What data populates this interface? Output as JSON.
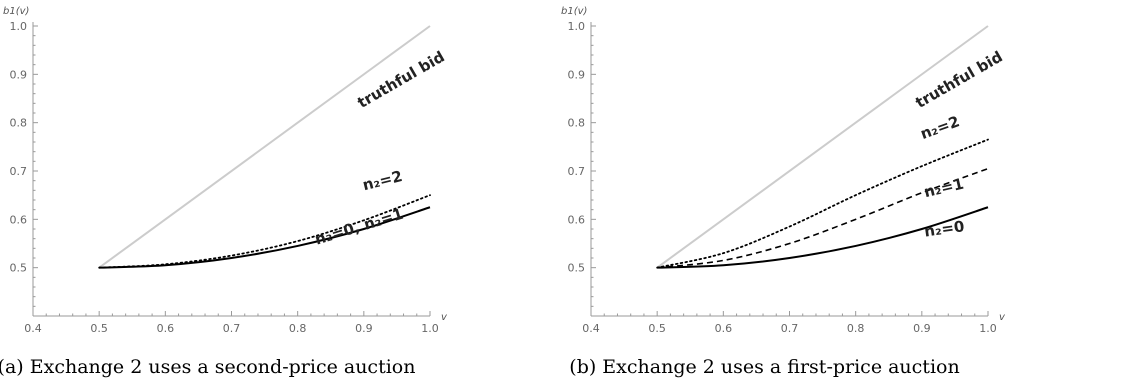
{
  "chart_data": [
    {
      "type": "line",
      "caption": "(a) Exchange 2 uses a second-price auction",
      "xlabel": "v",
      "ylabel": "b1(v)",
      "xlim": [
        0.4,
        1.0
      ],
      "ylim": [
        0.4,
        1.0
      ],
      "xticks": [
        "0.4",
        "0.5",
        "0.6",
        "0.7",
        "0.8",
        "0.9",
        "1.0"
      ],
      "yticks": [
        "0.5",
        "0.6",
        "0.7",
        "0.8",
        "0.9",
        "1.0"
      ],
      "series": [
        {
          "name": "truthful bid",
          "style": "solid",
          "color": "#cccccc",
          "x": [
            0.5,
            1.0
          ],
          "y": [
            0.5,
            1.0
          ]
        },
        {
          "name": "n2=0, n2=1",
          "style": "solid",
          "color": "#000000",
          "x": [
            0.5,
            0.6,
            0.7,
            0.8,
            0.9,
            1.0
          ],
          "y": [
            0.5,
            0.505,
            0.52,
            0.545,
            0.58,
            0.625
          ]
        },
        {
          "name": "n2=2",
          "style": "dotted",
          "color": "#000000",
          "x": [
            0.5,
            0.6,
            0.7,
            0.8,
            0.9,
            1.0
          ],
          "y": [
            0.5,
            0.507,
            0.525,
            0.555,
            0.598,
            0.65
          ]
        }
      ],
      "labels": [
        {
          "text": "truthful bid",
          "x": 0.96,
          "y": 0.88,
          "angle": -30
        },
        {
          "text": "n₂=2",
          "x": 0.93,
          "y": 0.67,
          "angle": -14
        },
        {
          "text": "n₂=0, n₂=1",
          "x": 0.895,
          "y": 0.575,
          "angle": -17
        }
      ]
    },
    {
      "type": "line",
      "caption": "(b) Exchange 2 uses a first-price auction",
      "xlabel": "v",
      "ylabel": "b1(v)",
      "xlim": [
        0.4,
        1.0
      ],
      "ylim": [
        0.4,
        1.0
      ],
      "xticks": [
        "0.4",
        "0.5",
        "0.6",
        "0.7",
        "0.8",
        "0.9",
        "1.0"
      ],
      "yticks": [
        "0.5",
        "0.6",
        "0.7",
        "0.8",
        "0.9",
        "1.0"
      ],
      "series": [
        {
          "name": "truthful bid",
          "style": "solid",
          "color": "#cccccc",
          "x": [
            0.5,
            1.0
          ],
          "y": [
            0.5,
            1.0
          ]
        },
        {
          "name": "n2=0",
          "style": "solid",
          "color": "#000000",
          "x": [
            0.5,
            0.6,
            0.7,
            0.8,
            0.9,
            1.0
          ],
          "y": [
            0.5,
            0.505,
            0.52,
            0.545,
            0.58,
            0.625
          ]
        },
        {
          "name": "n2=1",
          "style": "dashed",
          "color": "#000000",
          "x": [
            0.5,
            0.6,
            0.7,
            0.8,
            0.9,
            1.0
          ],
          "y": [
            0.5,
            0.515,
            0.55,
            0.6,
            0.655,
            0.705
          ]
        },
        {
          "name": "n2=2",
          "style": "dotted",
          "color": "#000000",
          "x": [
            0.5,
            0.6,
            0.7,
            0.8,
            0.9,
            1.0
          ],
          "y": [
            0.5,
            0.53,
            0.585,
            0.65,
            0.71,
            0.765
          ]
        }
      ],
      "labels": [
        {
          "text": "truthful bid",
          "x": 0.96,
          "y": 0.88,
          "angle": -30
        },
        {
          "text": "n₂=2",
          "x": 0.93,
          "y": 0.78,
          "angle": -20
        },
        {
          "text": "n₂=1",
          "x": 0.935,
          "y": 0.655,
          "angle": -13
        },
        {
          "text": "n₂=0",
          "x": 0.935,
          "y": 0.57,
          "angle": -8
        }
      ]
    }
  ]
}
